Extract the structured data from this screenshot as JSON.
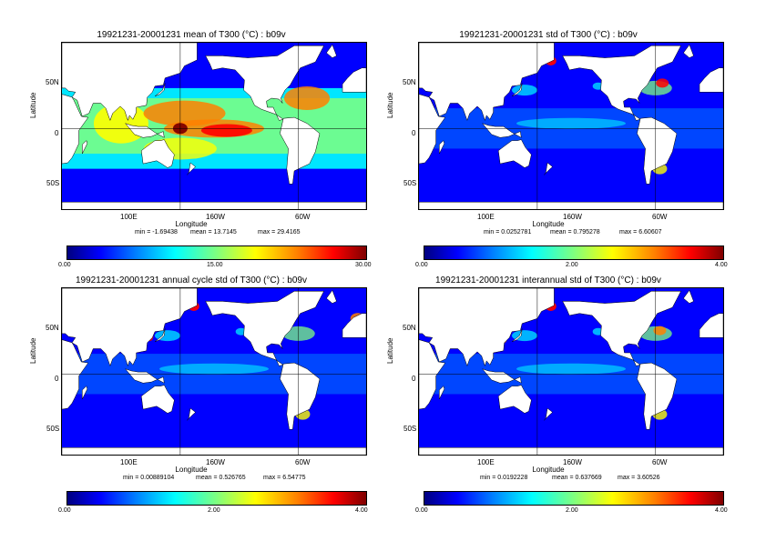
{
  "panels": [
    {
      "title": "19921231-20001231 mean of T300 (°C) : b09v",
      "kind": "mean",
      "ylabel": "Latitude",
      "xlabel": "Longitude",
      "yticks": [
        "50N",
        "0",
        "50S"
      ],
      "xticks": [
        "100E",
        "160W",
        "60W"
      ],
      "stats": {
        "min": "min = -1.69438",
        "mean": "mean = 13.7145",
        "max": "max = 29.4165"
      },
      "colorbar": [
        "0.00",
        "15.00",
        "30.00"
      ]
    },
    {
      "title": "19921231-20001231 std of T300 (°C) : b09v",
      "kind": "std",
      "ylabel": "Latitude",
      "xlabel": "Longitude",
      "yticks": [
        "50N",
        "0",
        "50S"
      ],
      "xticks": [
        "100E",
        "160W",
        "60W"
      ],
      "stats": {
        "min": "min = 0.0252781",
        "mean": "mean = 0.795278",
        "max": "max = 6.60607"
      },
      "colorbar": [
        "0.00",
        "2.00",
        "4.00"
      ]
    },
    {
      "title": "19921231-20001231 annual cycle std of T300 (°C) : b09v",
      "kind": "annual",
      "ylabel": "Latitude",
      "xlabel": "Longitude",
      "yticks": [
        "50N",
        "0",
        "50S"
      ],
      "xticks": [
        "100E",
        "160W",
        "60W"
      ],
      "stats": {
        "min": "min = 0.00889104",
        "mean": "mean = 0.526765",
        "max": "max = 6.54775"
      },
      "colorbar": [
        "0.00",
        "2.00",
        "4.00"
      ]
    },
    {
      "title": "19921231-20001231 interannual std of T300 (°C) : b09v",
      "kind": "interannual",
      "ylabel": "Latitude",
      "xlabel": "Longitude",
      "yticks": [
        "50N",
        "0",
        "50S"
      ],
      "xticks": [
        "100E",
        "160W",
        "60W"
      ],
      "stats": {
        "min": "min = 0.0192228",
        "mean": "mean = 0.637669",
        "max": "max = 3.60526"
      },
      "colorbar": [
        "0.00",
        "2.00",
        "4.00"
      ]
    }
  ],
  "colormap": [
    "#00007f",
    "#0000ff",
    "#0080ff",
    "#00ffff",
    "#7fff7f",
    "#ffff00",
    "#ff8000",
    "#ff0000",
    "#7f0000"
  ],
  "land_color": "#ffffff"
}
